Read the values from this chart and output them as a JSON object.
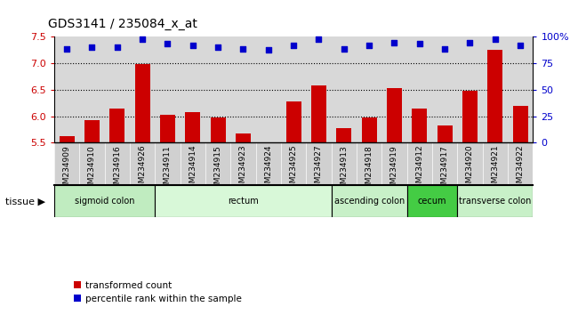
{
  "title": "GDS3141 / 235084_x_at",
  "samples": [
    "GSM234909",
    "GSM234910",
    "GSM234916",
    "GSM234926",
    "GSM234911",
    "GSM234914",
    "GSM234915",
    "GSM234923",
    "GSM234924",
    "GSM234925",
    "GSM234927",
    "GSM234913",
    "GSM234918",
    "GSM234919",
    "GSM234912",
    "GSM234917",
    "GSM234920",
    "GSM234921",
    "GSM234922"
  ],
  "transformed_counts": [
    5.62,
    5.92,
    6.15,
    6.97,
    6.02,
    6.08,
    5.97,
    5.68,
    5.51,
    6.27,
    6.57,
    5.77,
    5.97,
    6.53,
    6.15,
    5.83,
    6.47,
    7.25,
    6.2
  ],
  "percentile_ranks": [
    88,
    90,
    90,
    97,
    93,
    91,
    90,
    88,
    87,
    91,
    97,
    88,
    91,
    94,
    93,
    88,
    94,
    97,
    91
  ],
  "ylim_left": [
    5.5,
    7.5
  ],
  "ylim_right": [
    0,
    100
  ],
  "yticks_left": [
    5.5,
    6.0,
    6.5,
    7.0,
    7.5
  ],
  "yticks_right": [
    0,
    25,
    50,
    75,
    100
  ],
  "ytick_labels_right": [
    "0",
    "25",
    "50",
    "75",
    "100%"
  ],
  "dotted_lines": [
    6.0,
    6.5,
    7.0
  ],
  "bar_color": "#cc0000",
  "dot_color": "#0000cc",
  "bar_bottom": 5.5,
  "tissue_groups": [
    {
      "label": "sigmoid colon",
      "start": 0,
      "end": 3,
      "color": "#c0ecc0"
    },
    {
      "label": "rectum",
      "start": 4,
      "end": 10,
      "color": "#d8f8d8"
    },
    {
      "label": "ascending colon",
      "start": 11,
      "end": 13,
      "color": "#c8f0c8"
    },
    {
      "label": "cecum",
      "start": 14,
      "end": 15,
      "color": "#44cc44"
    },
    {
      "label": "transverse colon",
      "start": 16,
      "end": 18,
      "color": "#c8f0c8"
    }
  ],
  "tissue_label": "tissue",
  "legend_bar_label": "transformed count",
  "legend_dot_label": "percentile rank within the sample",
  "plot_bg_color": "#ffffff",
  "bar_bg_color": "#d8d8d8",
  "sample_bg_color": "#d0d0d0",
  "title_fontsize": 10,
  "tick_fontsize": 8,
  "sample_fontsize": 6.5
}
